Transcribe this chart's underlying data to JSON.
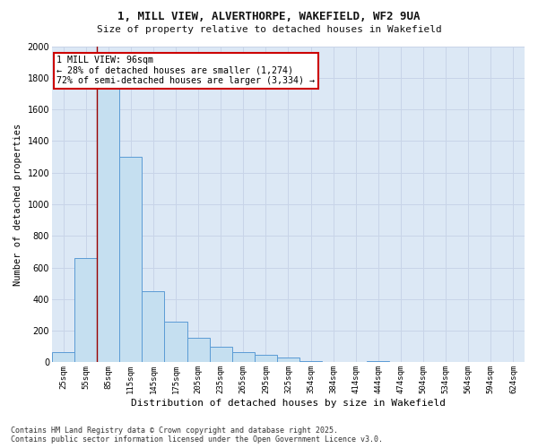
{
  "title_line1": "1, MILL VIEW, ALVERTHORPE, WAKEFIELD, WF2 9UA",
  "title_line2": "Size of property relative to detached houses in Wakefield",
  "xlabel": "Distribution of detached houses by size in Wakefield",
  "ylabel": "Number of detached properties",
  "categories": [
    "25sqm",
    "55sqm",
    "85sqm",
    "115sqm",
    "145sqm",
    "175sqm",
    "205sqm",
    "235sqm",
    "265sqm",
    "295sqm",
    "325sqm",
    "354sqm",
    "384sqm",
    "414sqm",
    "444sqm",
    "474sqm",
    "504sqm",
    "534sqm",
    "564sqm",
    "594sqm",
    "624sqm"
  ],
  "values": [
    65,
    660,
    1820,
    1300,
    450,
    260,
    155,
    100,
    65,
    50,
    30,
    10,
    0,
    0,
    10,
    0,
    0,
    0,
    0,
    0,
    0
  ],
  "bar_color": "#c5dff0",
  "bar_edge_color": "#5b9bd5",
  "vline_color": "#990000",
  "annotation_text": "1 MILL VIEW: 96sqm\n← 28% of detached houses are smaller (1,274)\n72% of semi-detached houses are larger (3,334) →",
  "annotation_box_color": "#ffffff",
  "annotation_box_edge": "#cc0000",
  "ylim": [
    0,
    2000
  ],
  "yticks": [
    0,
    200,
    400,
    600,
    800,
    1000,
    1200,
    1400,
    1600,
    1800,
    2000
  ],
  "grid_color": "#c8d4e8",
  "bg_color": "#dce8f5",
  "fig_color": "#ffffff",
  "footer_line1": "Contains HM Land Registry data © Crown copyright and database right 2025.",
  "footer_line2": "Contains public sector information licensed under the Open Government Licence v3.0."
}
